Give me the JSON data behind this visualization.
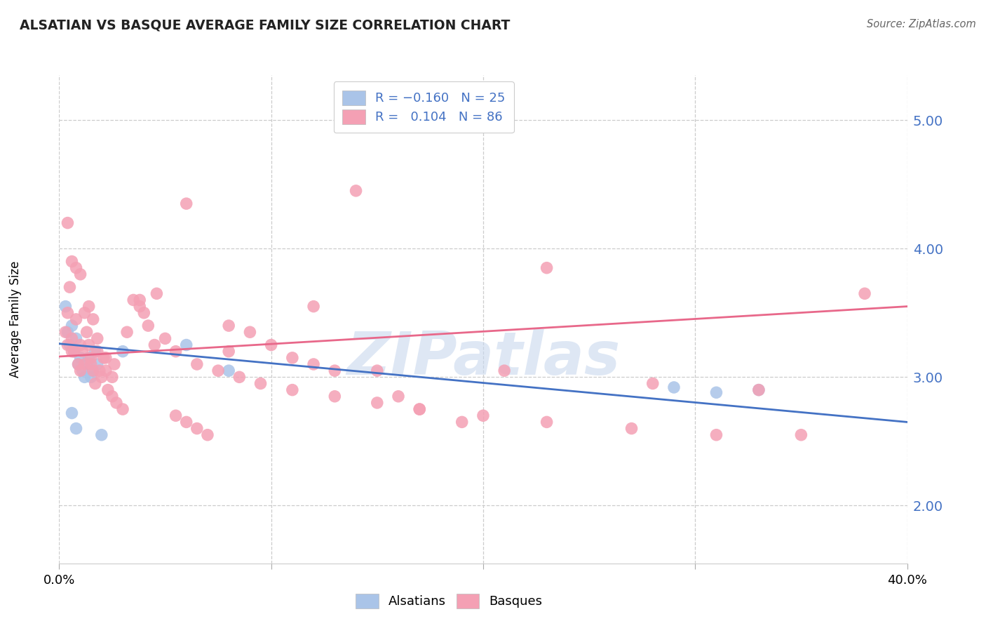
{
  "title": "ALSATIAN VS BASQUE AVERAGE FAMILY SIZE CORRELATION CHART",
  "source": "Source: ZipAtlas.com",
  "ylabel": "Average Family Size",
  "yticks": [
    2.0,
    3.0,
    4.0,
    5.0
  ],
  "xlim": [
    0.0,
    0.4
  ],
  "ylim": [
    1.55,
    5.35
  ],
  "alsatian_color": "#aac4e8",
  "basque_color": "#f4a0b4",
  "alsatian_line_color": "#4472c4",
  "basque_line_color": "#e8688a",
  "watermark": "ZIPatlas",
  "watermark_color": "#c8d8ee",
  "background_color": "#ffffff",
  "grid_color": "#cccccc",
  "tick_color": "#4472c4",
  "als_line_x0": 0.0,
  "als_line_y0": 3.26,
  "als_line_x1": 0.4,
  "als_line_y1": 2.65,
  "bas_line_x0": 0.0,
  "bas_line_y0": 3.16,
  "bas_line_x1": 0.4,
  "bas_line_y1": 3.55,
  "alsatian_scatter_x": [
    0.003,
    0.004,
    0.005,
    0.006,
    0.007,
    0.008,
    0.009,
    0.01,
    0.011,
    0.012,
    0.013,
    0.014,
    0.015,
    0.016,
    0.017,
    0.018,
    0.03,
    0.06,
    0.08,
    0.29,
    0.31,
    0.33,
    0.006,
    0.008,
    0.02
  ],
  "alsatian_scatter_y": [
    3.55,
    3.35,
    3.25,
    3.4,
    3.2,
    3.3,
    3.1,
    3.15,
    3.05,
    3.0,
    3.1,
    3.15,
    3.0,
    3.05,
    3.2,
    3.1,
    3.2,
    3.25,
    3.05,
    2.92,
    2.88,
    2.9,
    2.72,
    2.6,
    2.55
  ],
  "basque_scatter_x": [
    0.003,
    0.004,
    0.005,
    0.006,
    0.007,
    0.008,
    0.009,
    0.01,
    0.011,
    0.012,
    0.013,
    0.014,
    0.015,
    0.016,
    0.017,
    0.018,
    0.019,
    0.02,
    0.021,
    0.022,
    0.023,
    0.025,
    0.027,
    0.03,
    0.035,
    0.038,
    0.042,
    0.046,
    0.05,
    0.055,
    0.06,
    0.065,
    0.07,
    0.08,
    0.09,
    0.1,
    0.11,
    0.12,
    0.13,
    0.14,
    0.15,
    0.16,
    0.17,
    0.19,
    0.21,
    0.23,
    0.004,
    0.006,
    0.008,
    0.01,
    0.012,
    0.014,
    0.016,
    0.018,
    0.022,
    0.026,
    0.032,
    0.038,
    0.045,
    0.055,
    0.065,
    0.075,
    0.085,
    0.095,
    0.11,
    0.13,
    0.15,
    0.17,
    0.2,
    0.23,
    0.27,
    0.31,
    0.35,
    0.38,
    0.004,
    0.006,
    0.01,
    0.015,
    0.025,
    0.04,
    0.06,
    0.08,
    0.12,
    0.28,
    0.33
  ],
  "basque_scatter_y": [
    3.35,
    3.5,
    3.7,
    3.3,
    3.2,
    3.45,
    3.1,
    3.25,
    3.2,
    3.1,
    3.35,
    3.25,
    3.15,
    3.05,
    2.95,
    3.2,
    3.05,
    3.0,
    3.15,
    3.05,
    2.9,
    2.85,
    2.8,
    2.75,
    3.6,
    3.55,
    3.4,
    3.65,
    3.3,
    2.7,
    2.65,
    2.6,
    2.55,
    3.4,
    3.35,
    3.25,
    3.15,
    3.55,
    3.05,
    4.45,
    3.05,
    2.85,
    2.75,
    2.65,
    3.05,
    3.85,
    4.2,
    3.9,
    3.85,
    3.8,
    3.5,
    3.55,
    3.45,
    3.3,
    3.15,
    3.1,
    3.35,
    3.6,
    3.25,
    3.2,
    3.1,
    3.05,
    3.0,
    2.95,
    2.9,
    2.85,
    2.8,
    2.75,
    2.7,
    2.65,
    2.6,
    2.55,
    2.55,
    3.65,
    3.25,
    3.2,
    3.05,
    3.1,
    3.0,
    3.5,
    4.35,
    3.2,
    3.1,
    2.95,
    2.9
  ]
}
